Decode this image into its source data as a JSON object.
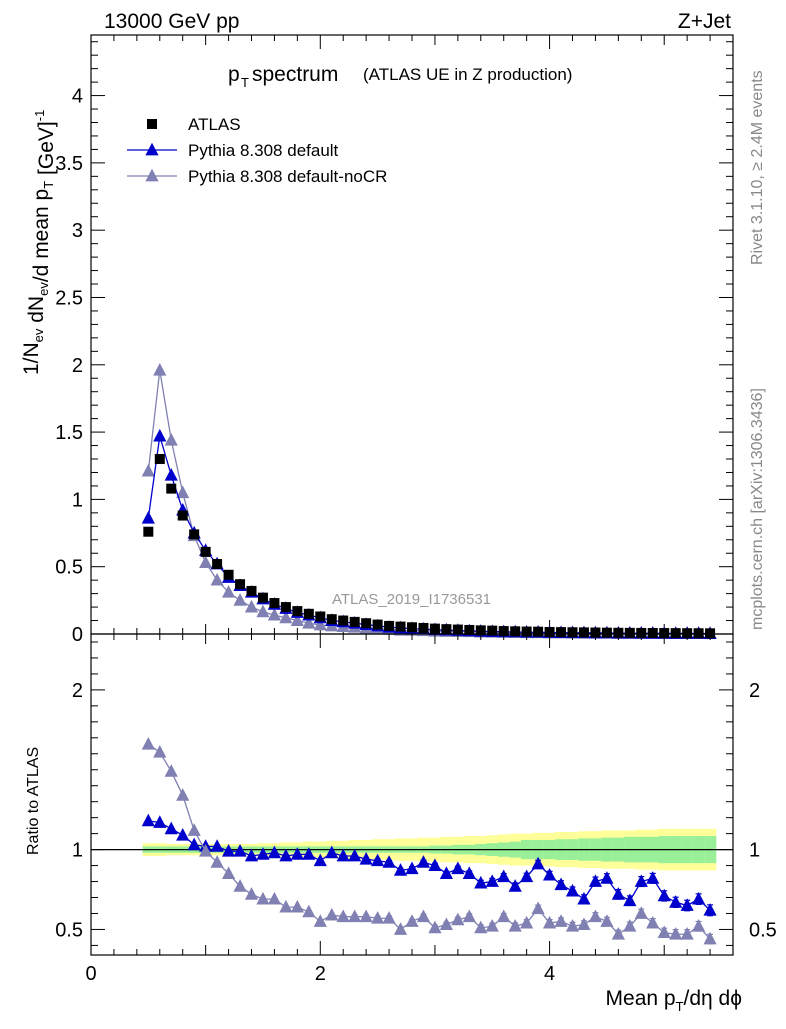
{
  "header": {
    "energy": "13000 GeV pp",
    "process": "Z+Jet"
  },
  "side_labels": {
    "rivet": "Rivet 3.1.10, ≥ 2.4M events",
    "mcplots": "mcplots.cern.ch [arXiv:1306.3436]"
  },
  "analysis_id": "ATLAS_2019_I1736531",
  "colors": {
    "data": "#000000",
    "default": "#0000cc",
    "nocr": "#8080b3",
    "band_inner": "#99f099",
    "band_outer": "#ffff99",
    "axis": "#000000"
  },
  "chart_data": [
    {
      "type": "scatter",
      "title_main": "p",
      "title_sub": "T",
      "title_rest": " spectrum",
      "title_note": "(ATLAS UE in Z production)",
      "ylabel": "1/N_ev dN_ev/d mean p_T [GeV]^-1",
      "ylim": [
        0,
        4.45
      ],
      "yticks": [
        0,
        0.5,
        1,
        1.5,
        2,
        2.5,
        3,
        3.5,
        4
      ],
      "ytick_labels": [
        "0",
        "0.5",
        "1",
        "1.5",
        "2",
        "2.5",
        "3",
        "3.5",
        "4"
      ],
      "xlim": [
        0,
        5.6
      ],
      "x": [
        0.5,
        0.6,
        0.7,
        0.8,
        0.9,
        1.0,
        1.1,
        1.2,
        1.3,
        1.4,
        1.5,
        1.6,
        1.7,
        1.8,
        1.9,
        2.0,
        2.1,
        2.2,
        2.3,
        2.4,
        2.5,
        2.6,
        2.7,
        2.8,
        2.9,
        3.0,
        3.1,
        3.2,
        3.3,
        3.4,
        3.5,
        3.6,
        3.7,
        3.8,
        3.9,
        4.0,
        4.1,
        4.2,
        4.3,
        4.4,
        4.5,
        4.6,
        4.7,
        4.8,
        4.9,
        5.0,
        5.1,
        5.2,
        5.3,
        5.4
      ],
      "series": [
        {
          "name": "ATLAS",
          "marker": "square",
          "values": [
            0.76,
            1.3,
            1.08,
            0.88,
            0.74,
            0.61,
            0.52,
            0.44,
            0.37,
            0.32,
            0.27,
            0.23,
            0.2,
            0.17,
            0.15,
            0.13,
            0.11,
            0.1,
            0.09,
            0.08,
            0.07,
            0.06,
            0.055,
            0.05,
            0.045,
            0.04,
            0.036,
            0.033,
            0.03,
            0.027,
            0.025,
            0.022,
            0.02,
            0.018,
            0.017,
            0.015,
            0.014,
            0.013,
            0.012,
            0.011,
            0.01,
            0.009,
            0.0085,
            0.008,
            0.0075,
            0.007,
            0.0065,
            0.006,
            0.0055,
            0.005
          ]
        },
        {
          "name": "Pythia 8.308 default",
          "marker": "triangle",
          "values": [
            0.86,
            1.47,
            1.18,
            0.92,
            0.75,
            0.62,
            0.52,
            0.42,
            0.36,
            0.31,
            0.26,
            0.22,
            0.19,
            0.16,
            0.14,
            0.12,
            0.1,
            0.09,
            0.08,
            0.07,
            0.06,
            0.05,
            0.045,
            0.04,
            0.036,
            0.032,
            0.029,
            0.026,
            0.023,
            0.02,
            0.018,
            0.016,
            0.015,
            0.013,
            0.013,
            0.011,
            0.01,
            0.0095,
            0.009,
            0.008,
            0.0072,
            0.006,
            0.0057,
            0.0055,
            0.005,
            0.0045,
            0.0043,
            0.0042,
            0.0038,
            0.0032
          ]
        },
        {
          "name": "Pythia 8.308 default-noCR",
          "marker": "triangle",
          "values": [
            1.21,
            1.96,
            1.44,
            1.05,
            0.73,
            0.53,
            0.4,
            0.31,
            0.25,
            0.2,
            0.165,
            0.14,
            0.12,
            0.1,
            0.08,
            0.067,
            0.06,
            0.055,
            0.05,
            0.044,
            0.04,
            0.034,
            0.028,
            0.027,
            0.024,
            0.021,
            0.019,
            0.018,
            0.017,
            0.014,
            0.013,
            0.012,
            0.011,
            0.0098,
            0.0098,
            0.008,
            0.0075,
            0.0068,
            0.0065,
            0.0057,
            0.0054,
            0.0047,
            0.0045,
            0.0043,
            0.0038,
            0.0034,
            0.0031,
            0.0029,
            0.0027,
            0.0022
          ]
        }
      ]
    },
    {
      "type": "scatter",
      "ylabel": "Ratio to ATLAS",
      "xlabel": "Mean p_T/dη dϕ",
      "ylim": [
        0.34,
        2.35
      ],
      "yticks": [
        0.5,
        1,
        2
      ],
      "ytick_labels": [
        "0.5",
        "1",
        "2"
      ],
      "xlim": [
        0,
        5.6
      ],
      "xticks": [
        0,
        2,
        4
      ],
      "xtick_labels": [
        "0",
        "2",
        "4"
      ],
      "x": [
        0.5,
        0.6,
        0.7,
        0.8,
        0.9,
        1.0,
        1.1,
        1.2,
        1.3,
        1.4,
        1.5,
        1.6,
        1.7,
        1.8,
        1.9,
        2.0,
        2.1,
        2.2,
        2.3,
        2.4,
        2.5,
        2.6,
        2.7,
        2.8,
        2.9,
        3.0,
        3.1,
        3.2,
        3.3,
        3.4,
        3.5,
        3.6,
        3.7,
        3.8,
        3.9,
        4.0,
        4.1,
        4.2,
        4.3,
        4.4,
        4.5,
        4.6,
        4.7,
        4.8,
        4.9,
        5.0,
        5.1,
        5.2,
        5.3,
        5.4
      ],
      "band_inner_halfwidth": [
        0.02,
        0.02,
        0.02,
        0.02,
        0.02,
        0.02,
        0.02,
        0.02,
        0.02,
        0.02,
        0.02,
        0.02,
        0.02,
        0.02,
        0.02,
        0.02,
        0.02,
        0.02,
        0.02,
        0.02,
        0.02,
        0.02,
        0.02,
        0.02,
        0.02,
        0.025,
        0.025,
        0.03,
        0.03,
        0.035,
        0.04,
        0.045,
        0.05,
        0.06,
        0.06,
        0.06,
        0.065,
        0.065,
        0.07,
        0.07,
        0.075,
        0.075,
        0.08,
        0.08,
        0.08,
        0.085,
        0.085,
        0.085,
        0.085,
        0.085
      ],
      "band_outer_halfwidth": [
        0.04,
        0.04,
        0.035,
        0.035,
        0.035,
        0.035,
        0.035,
        0.035,
        0.035,
        0.035,
        0.04,
        0.04,
        0.045,
        0.045,
        0.05,
        0.05,
        0.055,
        0.055,
        0.06,
        0.06,
        0.065,
        0.065,
        0.07,
        0.07,
        0.075,
        0.075,
        0.08,
        0.08,
        0.085,
        0.085,
        0.09,
        0.095,
        0.1,
        0.1,
        0.105,
        0.105,
        0.11,
        0.11,
        0.115,
        0.115,
        0.12,
        0.12,
        0.12,
        0.125,
        0.125,
        0.13,
        0.13,
        0.13,
        0.13,
        0.13
      ],
      "series": [
        {
          "name": "Pythia 8.308 default",
          "values": [
            1.18,
            1.17,
            1.13,
            1.09,
            1.03,
            1.02,
            1.02,
            0.99,
            0.99,
            0.96,
            0.97,
            0.98,
            0.96,
            0.97,
            0.97,
            0.93,
            0.98,
            0.96,
            0.96,
            0.94,
            0.93,
            0.92,
            0.87,
            0.88,
            0.92,
            0.9,
            0.85,
            0.88,
            0.85,
            0.79,
            0.8,
            0.83,
            0.77,
            0.83,
            0.91,
            0.84,
            0.78,
            0.74,
            0.69,
            0.8,
            0.82,
            0.72,
            0.68,
            0.8,
            0.82,
            0.71,
            0.67,
            0.65,
            0.69,
            0.62
          ],
          "errors": [
            0.005,
            0.005,
            0.005,
            0.005,
            0.005,
            0.005,
            0.005,
            0.005,
            0.005,
            0.006,
            0.006,
            0.006,
            0.007,
            0.007,
            0.008,
            0.008,
            0.009,
            0.009,
            0.01,
            0.01,
            0.011,
            0.012,
            0.012,
            0.013,
            0.014,
            0.015,
            0.015,
            0.016,
            0.017,
            0.018,
            0.019,
            0.02,
            0.021,
            0.022,
            0.023,
            0.024,
            0.025,
            0.026,
            0.027,
            0.028,
            0.029,
            0.03,
            0.03,
            0.031,
            0.031,
            0.032,
            0.032,
            0.033,
            0.033,
            0.034
          ]
        },
        {
          "name": "Pythia 8.308 default-noCR",
          "values": [
            1.66,
            1.61,
            1.49,
            1.34,
            1.12,
            0.99,
            0.92,
            0.85,
            0.77,
            0.72,
            0.69,
            0.69,
            0.64,
            0.64,
            0.61,
            0.55,
            0.59,
            0.58,
            0.58,
            0.58,
            0.57,
            0.57,
            0.5,
            0.55,
            0.58,
            0.51,
            0.53,
            0.56,
            0.58,
            0.51,
            0.52,
            0.58,
            0.52,
            0.54,
            0.63,
            0.54,
            0.55,
            0.52,
            0.53,
            0.58,
            0.55,
            0.47,
            0.52,
            0.6,
            0.54,
            0.48,
            0.47,
            0.47,
            0.52,
            0.44
          ],
          "errors": [
            0.006,
            0.006,
            0.006,
            0.006,
            0.006,
            0.006,
            0.006,
            0.006,
            0.007,
            0.007,
            0.007,
            0.008,
            0.008,
            0.009,
            0.009,
            0.01,
            0.01,
            0.011,
            0.011,
            0.012,
            0.012,
            0.013,
            0.014,
            0.014,
            0.015,
            0.016,
            0.016,
            0.017,
            0.018,
            0.018,
            0.019,
            0.02,
            0.02,
            0.021,
            0.022,
            0.022,
            0.023,
            0.024,
            0.024,
            0.025,
            0.026,
            0.026,
            0.027,
            0.027,
            0.028,
            0.028,
            0.029,
            0.029,
            0.03,
            0.03
          ]
        }
      ]
    }
  ]
}
